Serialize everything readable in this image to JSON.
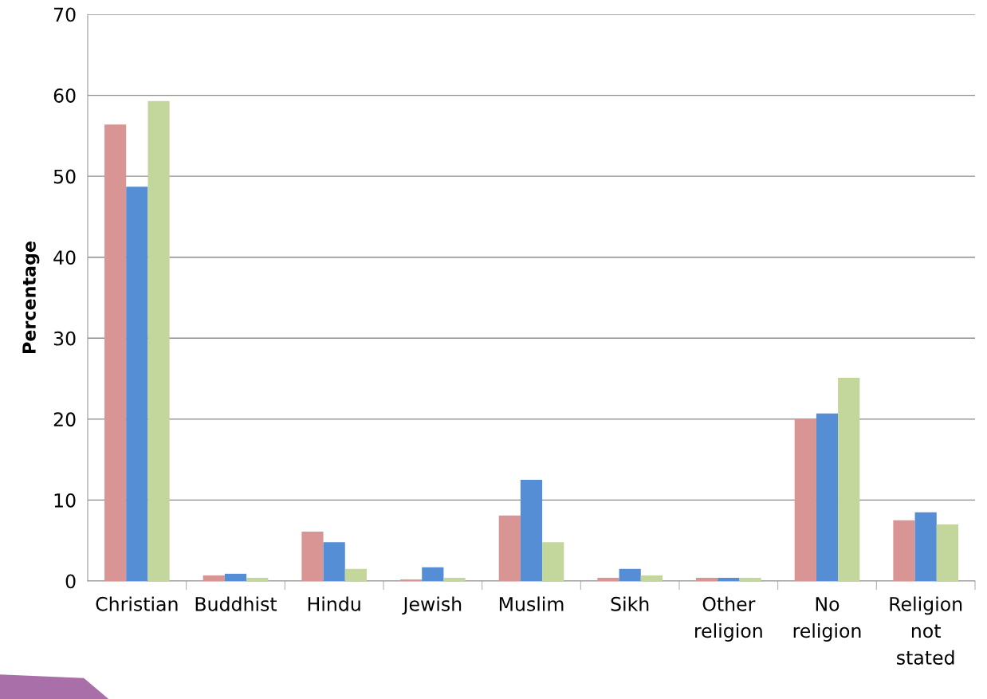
{
  "chart_data": {
    "type": "bar",
    "ylabel": "Percentage",
    "categories": [
      "Christian",
      "Buddhist",
      "Hindu",
      "Jewish",
      "Muslim",
      "Sikh",
      "Other\nreligion",
      "No\nreligion",
      "Religion\nnot\nstated"
    ],
    "series": [
      {
        "color": "#d99594",
        "values": [
          56.4,
          0.7,
          6.1,
          0.2,
          8.1,
          0.4,
          0.4,
          20.0,
          7.5
        ]
      },
      {
        "color": "#558ed5",
        "values": [
          48.7,
          0.9,
          4.8,
          1.7,
          12.5,
          1.5,
          0.4,
          20.7,
          8.5
        ]
      },
      {
        "color": "#c3d69b",
        "values": [
          59.3,
          0.4,
          1.5,
          0.4,
          4.8,
          0.7,
          0.4,
          25.1,
          7.0
        ]
      }
    ],
    "ylim": [
      0,
      70
    ],
    "yticks": [
      0,
      10,
      20,
      30,
      40,
      50,
      60,
      70
    ],
    "grid": "y"
  }
}
